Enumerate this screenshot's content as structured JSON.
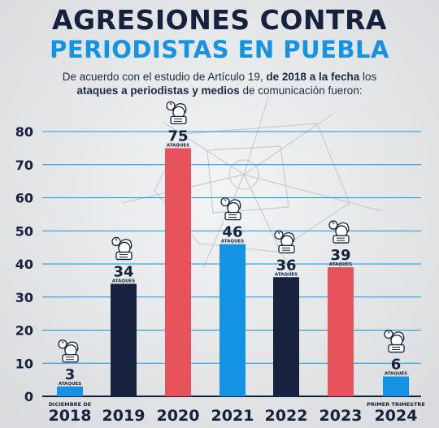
{
  "header": {
    "title_line1": "AGRESIONES CONTRA",
    "title_line2": "PERIODISTAS EN PUEBLA",
    "subtitle_part1": "De acuerdo con el estudio de Artículo 19, ",
    "subtitle_bold1": "de 2018 a la fecha",
    "subtitle_part2": " los",
    "subtitle_bold2": "ataques a periodistas y medios",
    "subtitle_part3": " de comunicación fueron:"
  },
  "colors": {
    "navy": "#16223d",
    "blue": "#1593e3",
    "red": "#e8525a",
    "grid": "#1593e3"
  },
  "chart_data": {
    "type": "bar",
    "categories": [
      "2018",
      "2019",
      "2020",
      "2021",
      "2022",
      "2023",
      "2024"
    ],
    "category_notes": [
      "DICIEMBRE DE",
      "",
      "",
      "",
      "",
      "",
      "PRIMER TRIMESTRE"
    ],
    "values": [
      3,
      34,
      75,
      46,
      36,
      39,
      6
    ],
    "value_unit": "ATAQUES",
    "bar_colors": [
      "#1593e3",
      "#16223d",
      "#e8525a",
      "#1593e3",
      "#16223d",
      "#e8525a",
      "#1593e3"
    ],
    "ylim": [
      0,
      80
    ],
    "yticks": [
      0,
      10,
      20,
      30,
      40,
      50,
      60,
      70,
      80
    ],
    "grid": true,
    "icon": "journalist-icon"
  }
}
